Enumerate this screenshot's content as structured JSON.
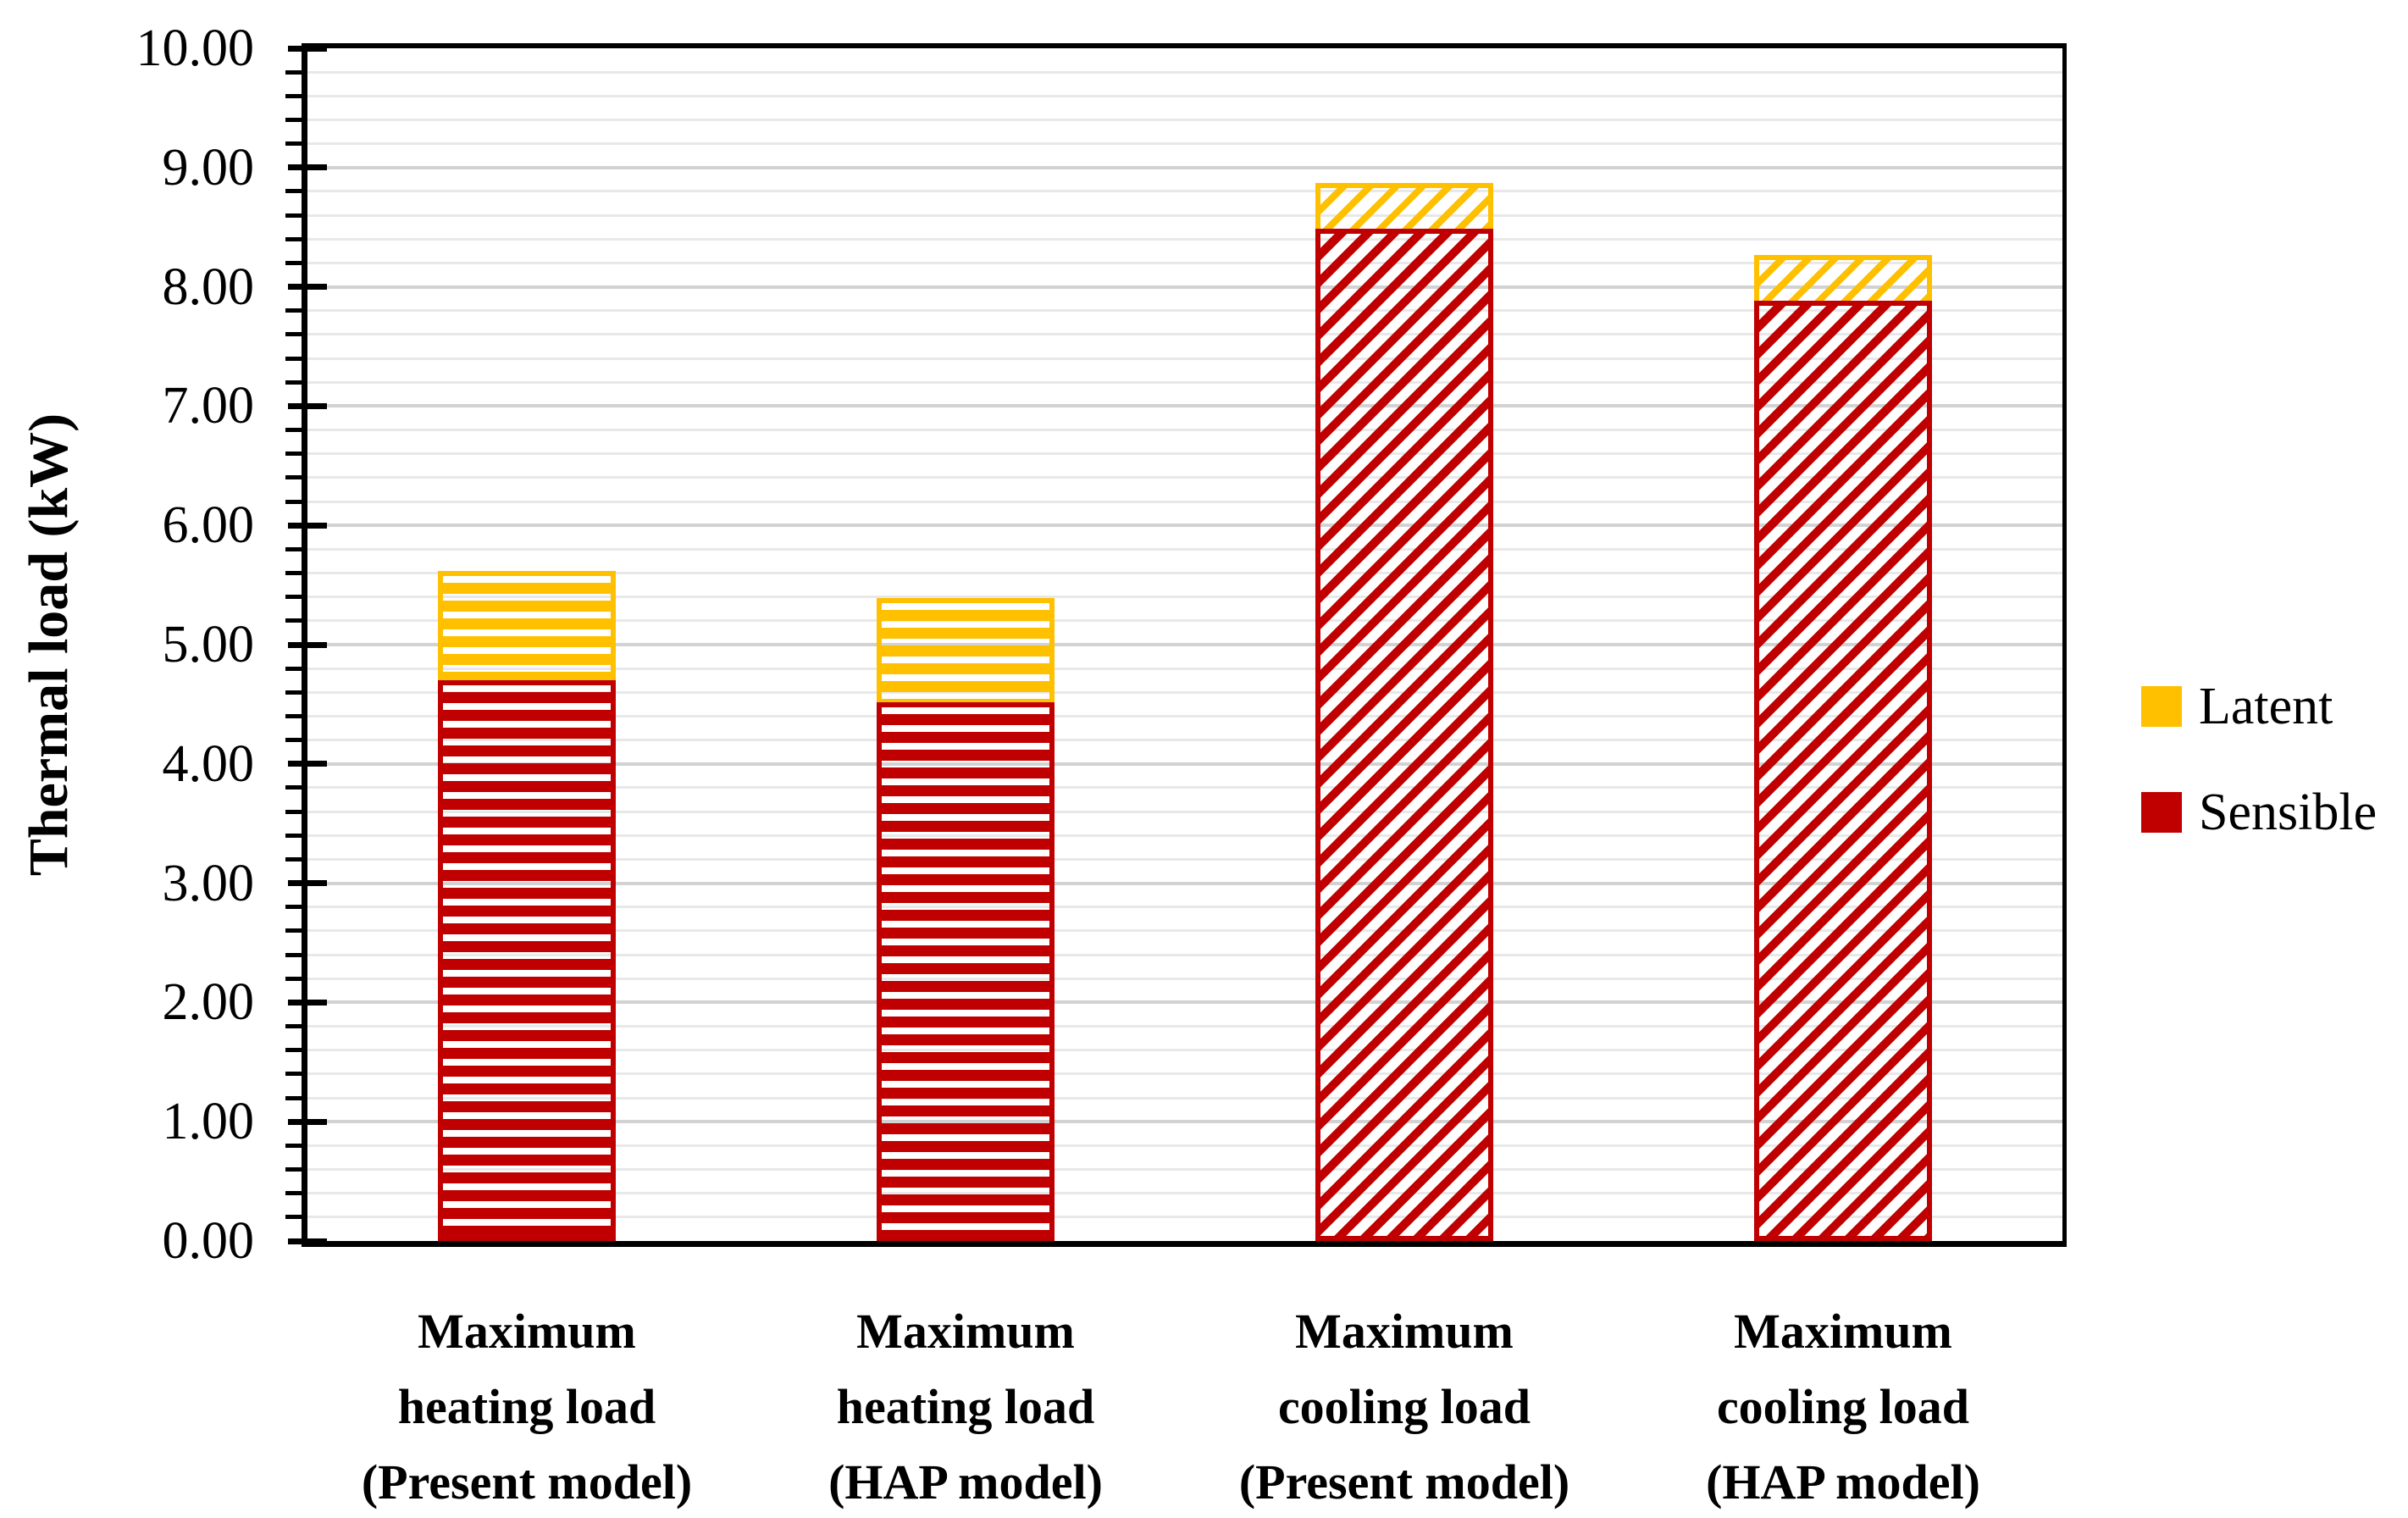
{
  "figure": {
    "background": "#ffffff"
  },
  "chart_data": {
    "type": "bar",
    "stacked": true,
    "title": "",
    "xlabel": "",
    "ylabel": "Thermal load (kW)",
    "ylim": [
      0,
      10
    ],
    "y_major_step": 1.0,
    "y_minor_step": 0.2,
    "grid": {
      "show": true,
      "minor_color": "#e8e8e8",
      "major_color": "#d2d2d2"
    },
    "y_tick_labels": [
      "10.00",
      "9.00",
      "8.00",
      "7.00",
      "6.00",
      "5.00",
      "4.00",
      "3.00",
      "2.00",
      "1.00",
      "0.00"
    ],
    "categories": [
      {
        "lines": [
          "Maximum",
          "heating load",
          "(Present model)"
        ],
        "pattern": "horizontal"
      },
      {
        "lines": [
          "Maximum",
          "heating load",
          "(HAP model)"
        ],
        "pattern": "horizontal"
      },
      {
        "lines": [
          "Maximum",
          "cooling load",
          "(Present model)"
        ],
        "pattern": "diagonal"
      },
      {
        "lines": [
          "Maximum",
          "cooling load",
          "(HAP model)"
        ],
        "pattern": "diagonal"
      }
    ],
    "series": [
      {
        "name": "Sensible",
        "color": "#c00000",
        "values": [
          4.7,
          4.52,
          8.49,
          7.88
        ]
      },
      {
        "name": "Latent",
        "color": "#ffc000",
        "values": [
          0.92,
          0.87,
          0.38,
          0.39
        ]
      }
    ],
    "stack_totals": [
      5.62,
      5.39,
      8.87,
      8.27
    ],
    "legend": {
      "position": "right",
      "entries": [
        {
          "label": "Latent",
          "color": "#ffc000"
        },
        {
          "label": "Sensible",
          "color": "#c00000"
        }
      ]
    }
  }
}
